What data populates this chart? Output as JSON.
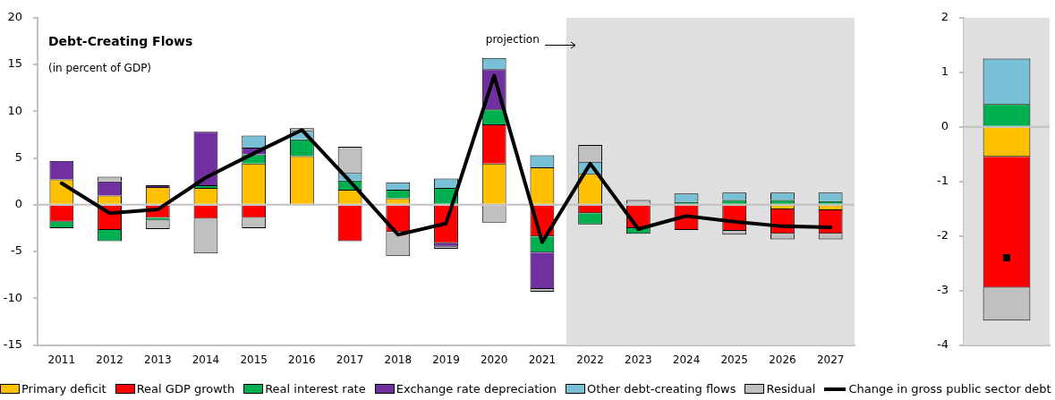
{
  "chart_data": [
    {
      "type": "bar",
      "title": "Debt-Creating Flows",
      "subtitle": "(in percent of GDP)",
      "stacked": true,
      "legend": "bottom",
      "marker": "none",
      "categories": [
        "2011",
        "2012",
        "2013",
        "2014",
        "2015",
        "2016",
        "2017",
        "2018",
        "2019",
        "2020",
        "2021",
        "2022",
        "2023",
        "2024",
        "2025",
        "2026",
        "2027"
      ],
      "ylim": [
        -15,
        20
      ],
      "yticks": [
        -15,
        -10,
        -5,
        0,
        5,
        10,
        15,
        20
      ],
      "ref_lines": [
        {
          "axis": "y",
          "value": 0,
          "color": "#c0c0c0"
        }
      ],
      "bands": [
        {
          "axis": "x",
          "from": "2022",
          "to": "2027",
          "color": "#dfdfdf"
        }
      ],
      "annotations": [
        "projection"
      ],
      "series": [
        {
          "name": "Primary deficit",
          "color": "#ffc000",
          "values": [
            2.7,
            1.0,
            1.9,
            1.8,
            4.4,
            5.2,
            1.6,
            0.7,
            null,
            4.4,
            4.0,
            3.3,
            null,
            null,
            null,
            -0.5,
            -0.6
          ]
        },
        {
          "name": "Real GDP growth",
          "color": "#ff0000",
          "values": [
            -1.8,
            -2.7,
            -1.4,
            -1.5,
            -1.4,
            null,
            -3.9,
            -2.9,
            -4.1,
            4.2,
            -3.4,
            -0.9,
            -2.5,
            -2.7,
            -2.8,
            -2.6,
            -2.5
          ]
        },
        {
          "name": "Real interest rate",
          "color": "#00b050",
          "values": [
            -0.7,
            -1.2,
            -0.3,
            0.3,
            1.0,
            1.8,
            1.0,
            0.9,
            1.8,
            1.6,
            -1.7,
            -1.2,
            -0.6,
            0.3,
            0.5,
            0.5,
            0.4
          ]
        },
        {
          "name": "Exchange rate depreciation",
          "color": "#7030a0",
          "values": [
            2.0,
            1.5,
            0.2,
            5.7,
            0.7,
            null,
            null,
            null,
            -0.4,
            4.3,
            -3.9,
            null,
            null,
            null,
            null,
            null,
            null
          ]
        },
        {
          "name": "Other debt-creating flows",
          "color": "#78c0d6",
          "values": [
            null,
            null,
            null,
            null,
            1.3,
            0.9,
            0.8,
            0.8,
            1.0,
            1.2,
            1.3,
            1.3,
            null,
            0.9,
            0.8,
            0.8,
            0.9
          ]
        },
        {
          "name": "Residual",
          "color": "#c0c0c0",
          "values": [
            null,
            0.5,
            -0.9,
            -3.7,
            -1.1,
            0.3,
            2.8,
            -2.6,
            -0.2,
            -1.9,
            -0.3,
            1.8,
            0.5,
            null,
            -0.4,
            -0.6,
            -0.6
          ]
        },
        {
          "name": "Change in gross public sector debt",
          "type": "line",
          "color": "#000000",
          "values": [
            2.3,
            -0.9,
            -0.5,
            2.9,
            5.5,
            8.0,
            2.5,
            -3.2,
            -2.0,
            13.8,
            -4.0,
            4.4,
            -2.6,
            -1.2,
            -1.8,
            -2.3,
            -2.4
          ]
        }
      ]
    },
    {
      "type": "bar",
      "stacked": true,
      "marker": "square",
      "categories": [
        null
      ],
      "ylim": [
        -4,
        2
      ],
      "yticks": [
        -4,
        -3,
        -2,
        -1,
        0,
        1,
        2
      ],
      "ref_lines": [
        {
          "axis": "y",
          "value": 0,
          "color": "#c0c0c0"
        }
      ],
      "bands": [
        {
          "axis": "y",
          "from": -4,
          "to": 2,
          "color": "#dfdfdf"
        }
      ],
      "series": [
        {
          "color": "#ffc000",
          "values": [
            -0.55
          ]
        },
        {
          "color": "#ff0000",
          "values": [
            -2.4
          ]
        },
        {
          "color": "#00b050",
          "values": [
            0.42
          ]
        },
        {
          "color": "#78c0d6",
          "values": [
            0.83
          ]
        },
        {
          "color": "#c0c0c0",
          "values": [
            -0.6
          ]
        },
        {
          "type": "scatter",
          "color": "#000000",
          "values": [
            -2.4
          ]
        }
      ]
    }
  ]
}
